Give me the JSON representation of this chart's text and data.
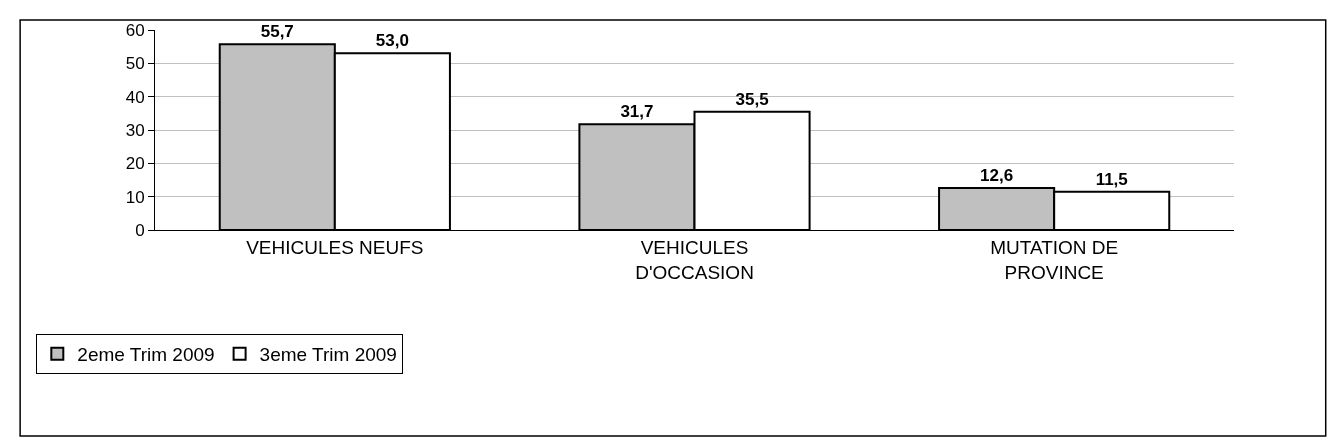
{
  "chart_data": {
    "type": "bar",
    "categories": [
      "VEHICULES NEUFS",
      "VEHICULES D'OCCASION",
      "MUTATION DE PROVINCE"
    ],
    "series": [
      {
        "name": "2eme Trim 2009",
        "color": "#c0c0c0",
        "values": [
          55.7,
          31.7,
          12.6
        ],
        "value_labels": [
          "55,7",
          "31,7",
          "12,6"
        ]
      },
      {
        "name": "3eme Trim 2009",
        "color": "#ffffff",
        "values": [
          53.0,
          35.5,
          11.5
        ],
        "value_labels": [
          "53,0",
          "35,5",
          "11,5"
        ]
      }
    ],
    "ylim": [
      0,
      60
    ],
    "yticks": [
      0,
      10,
      20,
      30,
      40,
      50,
      60
    ],
    "grid": "y",
    "legend": "bottom left"
  }
}
